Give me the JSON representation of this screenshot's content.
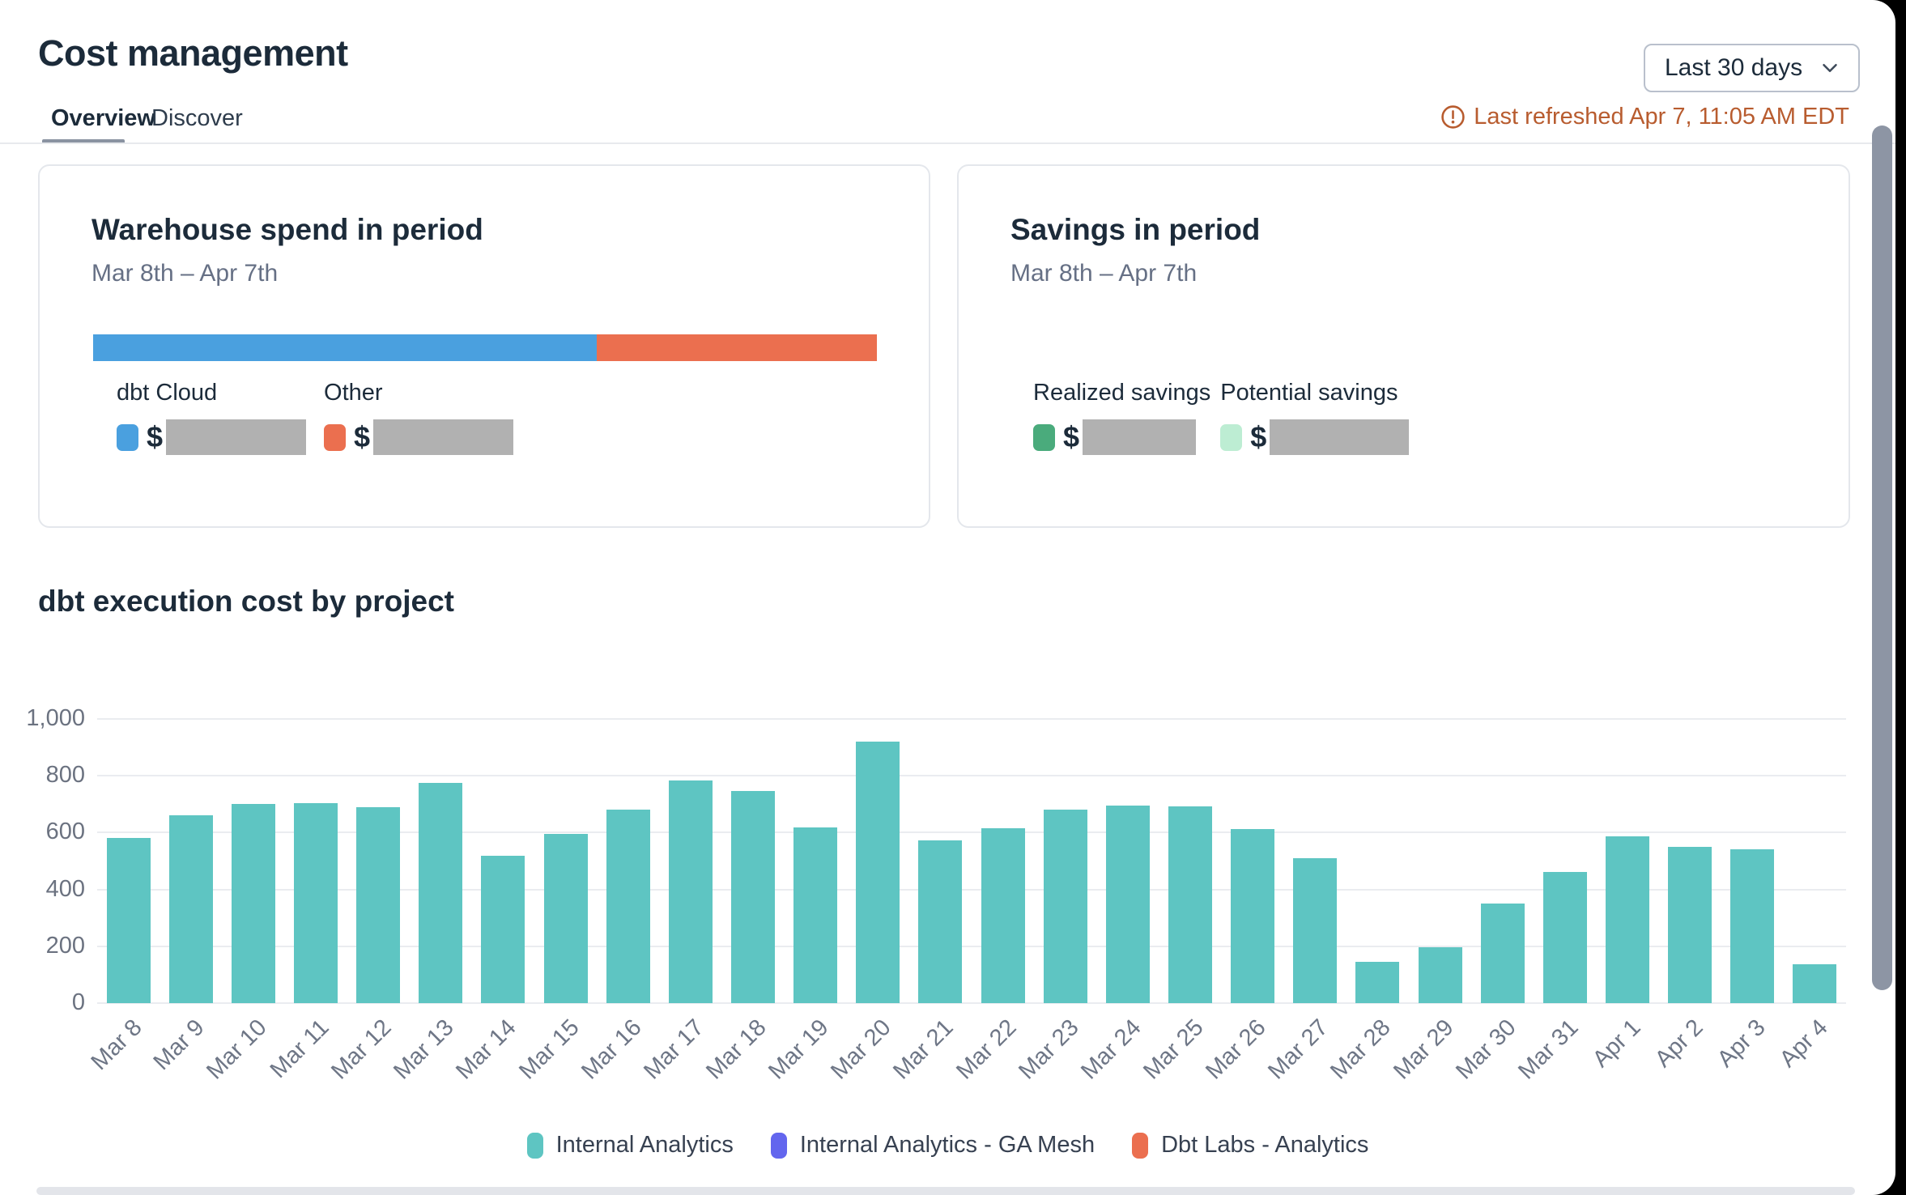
{
  "header": {
    "title": "Cost management",
    "tabs": [
      {
        "label": "Overview",
        "active": true
      },
      {
        "label": "Discover",
        "active": false
      }
    ],
    "date_range_selector": {
      "value": "Last 30 days"
    },
    "last_refreshed": "Last refreshed Apr 7, 11:05 AM EDT"
  },
  "cards": {
    "warehouse_spend": {
      "title": "Warehouse spend in period",
      "subtitle": "Mar 8th – Apr 7th",
      "stacked_bar": {
        "segments": [
          {
            "label": "dbt Cloud",
            "color": "#4aa0df",
            "fraction": 0.643
          },
          {
            "label": "Other",
            "color": "#eb6f4f",
            "fraction": 0.357
          }
        ]
      },
      "legend": [
        {
          "label": "dbt Cloud",
          "color": "#4aa0df",
          "value_prefix": "$",
          "value_redacted": true
        },
        {
          "label": "Other",
          "color": "#eb6f4f",
          "value_prefix": "$",
          "value_redacted": true
        }
      ]
    },
    "savings": {
      "title": "Savings in period",
      "subtitle": "Mar 8th – Apr 7th",
      "legend": [
        {
          "label": "Realized savings",
          "color": "#4aab7c",
          "value_prefix": "$",
          "value_redacted": true
        },
        {
          "label": "Potential savings",
          "color": "#bdedd3",
          "value_prefix": "$",
          "value_redacted": true
        }
      ]
    }
  },
  "chart_data": {
    "type": "bar",
    "title": "dbt execution cost by project",
    "categories": [
      "Mar 8",
      "Mar 9",
      "Mar 10",
      "Mar 11",
      "Mar 12",
      "Mar 13",
      "Mar 14",
      "Mar 15",
      "Mar 16",
      "Mar 17",
      "Mar 18",
      "Mar 19",
      "Mar 20",
      "Mar 21",
      "Mar 22",
      "Mar 23",
      "Mar 24",
      "Mar 25",
      "Mar 26",
      "Mar 27",
      "Mar 28",
      "Mar 29",
      "Mar 30",
      "Mar 31",
      "Apr 1",
      "Apr 2",
      "Apr 3",
      "Apr 4"
    ],
    "series": [
      {
        "name": "Internal Analytics",
        "color": "#5ec5c2",
        "values": [
          580,
          660,
          700,
          705,
          690,
          776,
          518,
          595,
          682,
          784,
          746,
          617,
          921,
          572,
          616,
          682,
          696,
          693,
          612,
          509,
          144,
          196,
          350,
          461,
          586,
          551,
          542,
          136
        ]
      }
    ],
    "legend": [
      {
        "label": "Internal Analytics",
        "color": "#5ec5c2"
      },
      {
        "label": "Internal Analytics - GA Mesh",
        "color": "#6366ee"
      },
      {
        "label": "Dbt Labs - Analytics",
        "color": "#eb6f4f"
      }
    ],
    "xlabel": "",
    "ylabel": "",
    "ylim": [
      0,
      1000
    ],
    "yticks": [
      0,
      200,
      400,
      600,
      800,
      1000
    ],
    "ytick_labels": [
      "0",
      "200",
      "400",
      "600",
      "800",
      "1,000"
    ],
    "grid": true,
    "legend_position": "bottom"
  }
}
